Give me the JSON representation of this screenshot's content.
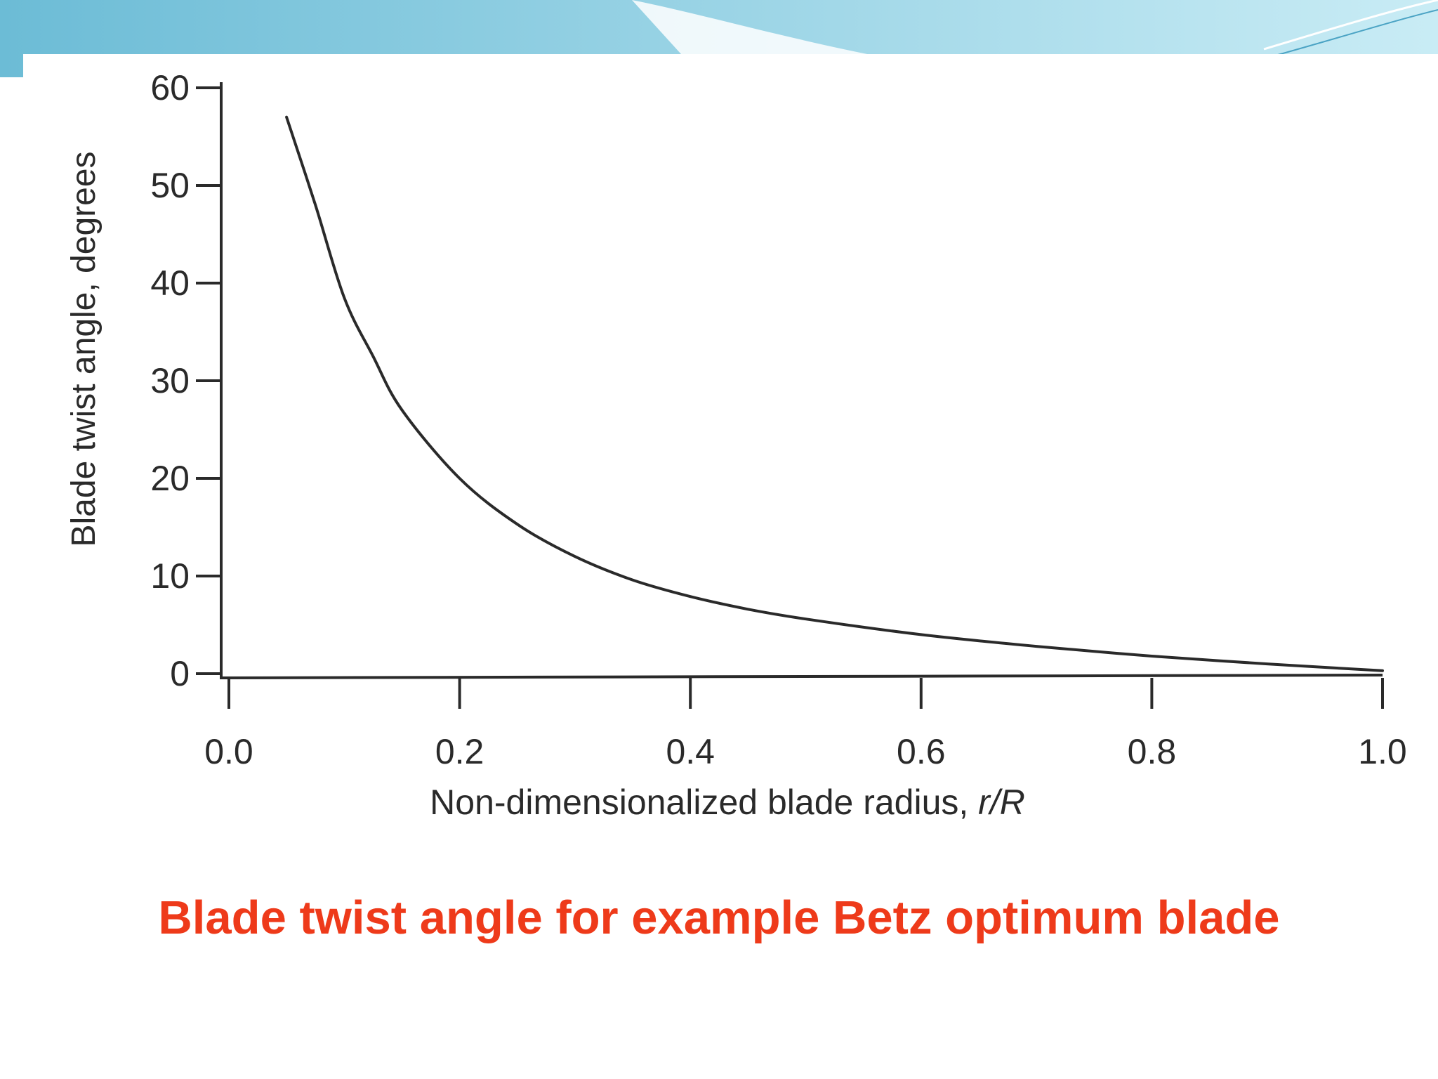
{
  "colors": {
    "header_gradient_start": "#6cbcd6",
    "header_gradient_end": "#c9ecf5",
    "caption": "#ee3a1a",
    "curve": "#2a2a2a",
    "axis": "#2a2a2a"
  },
  "caption": "Blade twist angle for example Betz optimum blade",
  "chart_data": {
    "type": "line",
    "title": "",
    "xlabel": "Non-dimensionalized blade radius, ",
    "xlabel_italic": "r/R",
    "ylabel": "Blade twist angle, degrees",
    "xlim": [
      0.0,
      1.0
    ],
    "ylim": [
      0,
      60
    ],
    "x_ticks": [
      "0.0",
      "0.2",
      "0.4",
      "0.6",
      "0.8",
      "1.0"
    ],
    "y_ticks": [
      "0",
      "10",
      "20",
      "30",
      "40",
      "50",
      "60"
    ],
    "grid": false,
    "legend": "none",
    "series": [
      {
        "x": [
          0.05,
          0.075,
          0.1,
          0.125,
          0.15,
          0.2,
          0.25,
          0.3,
          0.35,
          0.4,
          0.45,
          0.5,
          0.6,
          0.7,
          0.8,
          0.9,
          1.0
        ],
        "y": [
          57.0,
          48.0,
          38.5,
          32.5,
          27.0,
          20.0,
          15.3,
          12.0,
          9.6,
          7.9,
          6.6,
          5.6,
          4.0,
          2.8,
          1.8,
          1.0,
          0.3
        ]
      }
    ]
  }
}
